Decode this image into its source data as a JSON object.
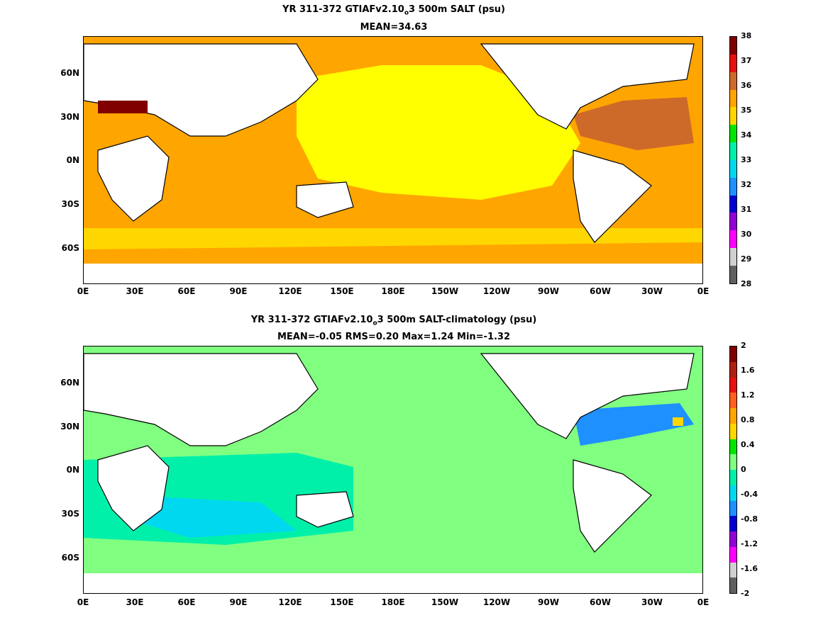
{
  "top": {
    "title_pre": "YR 311-372 GTIAFv2.10",
    "title_sub": "o",
    "title_post": "3 500m SALT (psu)",
    "subtitle": "MEAN=34.63",
    "colorbar": {
      "labels": [
        "38",
        "37",
        "36",
        "35",
        "34",
        "33",
        "32",
        "31",
        "30",
        "29",
        "28"
      ],
      "colors": [
        "#800000",
        "#e81010",
        "#cd6a2a",
        "#ffa500",
        "#ffd700",
        "#00e600",
        "#00f0aa",
        "#00d8f0",
        "#1e90ff",
        "#0000d0",
        "#9400d3",
        "#ff00ff",
        "#d0d0d0",
        "#606060"
      ]
    }
  },
  "bottom": {
    "title_pre": "YR 311-372 GTIAFv2.10",
    "title_sub": "o",
    "title_post": "3 500m SALT-climatology (psu)",
    "subtitle": "MEAN=-0.05   RMS=0.20   Max=1.24   Min=-1.32",
    "colorbar": {
      "labels": [
        "2",
        "1.6",
        "1.2",
        "0.8",
        "0.4",
        "0",
        "-0.4",
        "-0.8",
        "-1.2",
        "-1.6",
        "-2"
      ],
      "colors": [
        "#800000",
        "#b02010",
        "#e81010",
        "#ff6020",
        "#ffa500",
        "#ffd700",
        "#00e600",
        "#80ff80",
        "#00f0aa",
        "#00d8f0",
        "#1e90ff",
        "#0000d0",
        "#9400d3",
        "#ff00ff",
        "#d0d0d0",
        "#606060"
      ]
    }
  },
  "axes": {
    "x_ticks": [
      "0E",
      "30E",
      "60E",
      "90E",
      "120E",
      "150E",
      "180E",
      "150W",
      "120W",
      "90W",
      "60W",
      "30W",
      "0E"
    ],
    "y_ticks": [
      "60N",
      "30N",
      "0N",
      "30S",
      "60S"
    ]
  }
}
